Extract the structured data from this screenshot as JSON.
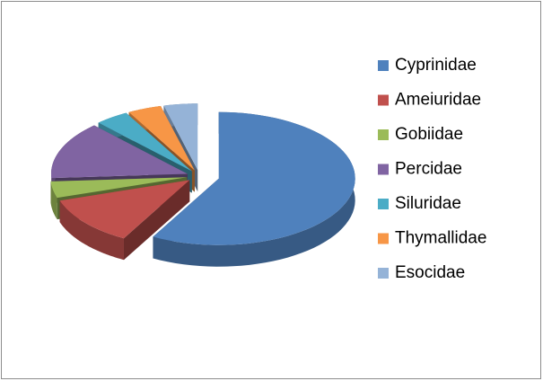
{
  "chart_data": {
    "type": "pie",
    "three_d": true,
    "exploded": true,
    "categories": [
      "Cyprinidae",
      "Ameiuridae",
      "Gobiidae",
      "Percidae",
      "Siluridae",
      "Thymallidae",
      "Esocidae"
    ],
    "values": [
      58,
      12,
      4,
      14,
      4,
      4,
      4
    ],
    "colors": [
      "#4F81BD",
      "#C0504D",
      "#9BBB59",
      "#8064A2",
      "#4BACC6",
      "#F79646",
      "#95B3D7"
    ],
    "legend": "right"
  }
}
